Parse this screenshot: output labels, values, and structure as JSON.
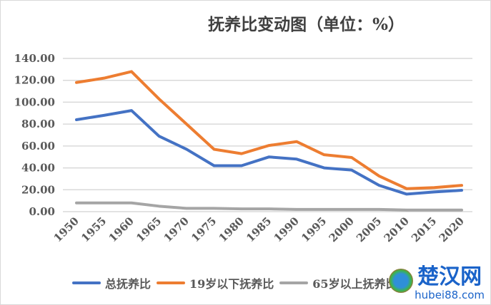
{
  "chart_data": {
    "type": "line",
    "title": "抚养比变动图（单位：%）",
    "x": [
      "1950",
      "1955",
      "1960",
      "1965",
      "1970",
      "1975",
      "1980",
      "1985",
      "1990",
      "1995",
      "2000",
      "2005",
      "2010",
      "2015",
      "2020"
    ],
    "yticks": [
      "0.00",
      "20.00",
      "40.00",
      "60.00",
      "80.00",
      "100.00",
      "120.00",
      "140.00"
    ],
    "ylim": [
      0,
      140
    ],
    "grid": true,
    "legend": "bottom",
    "series": [
      {
        "name": "总抚养比",
        "color": "#4472c4",
        "values": [
          84,
          88,
          92.4,
          69,
          57,
          42,
          42,
          50,
          48,
          40,
          38,
          24,
          16,
          18,
          19.5
        ]
      },
      {
        "name": "19岁以下抚养比",
        "color": "#ed7d31",
        "values": [
          118,
          122,
          128,
          103,
          80,
          57,
          53,
          60.5,
          64,
          52,
          49.5,
          32.5,
          21,
          22,
          24
        ]
      },
      {
        "name": "65岁以上抚养比",
        "color": "#a5a5a5",
        "values": [
          8,
          8,
          8,
          5,
          3,
          3,
          2.5,
          2.5,
          2,
          2,
          2,
          2,
          1.5,
          1.5,
          1.5
        ]
      }
    ]
  },
  "watermark": {
    "name": "楚汉网",
    "url": "hubei88.com"
  }
}
